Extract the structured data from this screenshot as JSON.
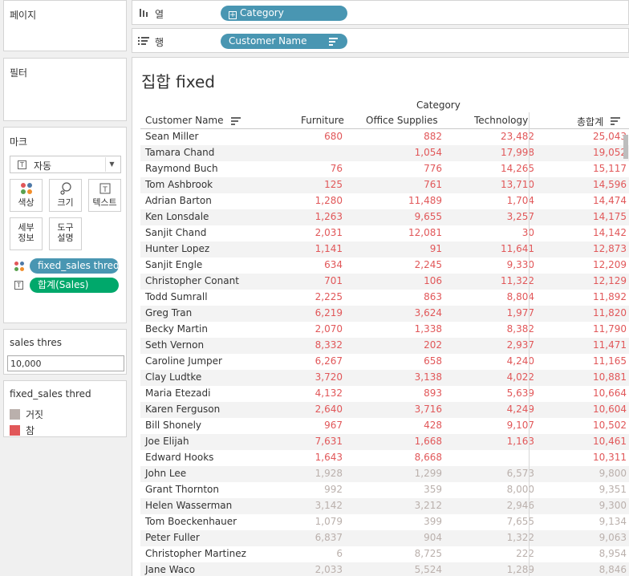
{
  "left": {
    "pages_title": "페이지",
    "filters_title": "필터",
    "marks": {
      "title": "마크",
      "type_label": "자동",
      "buttons": {
        "color": "색상",
        "size": "크기",
        "text": "텍스트",
        "detail_l1": "세부",
        "detail_l2": "정보",
        "tooltip_l1": "도구",
        "tooltip_l2": "설명"
      },
      "pills": [
        {
          "label": "fixed_sales thred",
          "kind": "color"
        },
        {
          "label": "합계(Sales)",
          "kind": "text"
        }
      ]
    },
    "parameter": {
      "title": "sales thres",
      "value": "10,000"
    },
    "legend": {
      "title": "fixed_sales thred",
      "items": [
        {
          "label": "거짓",
          "color": "#bab0ac"
        },
        {
          "label": "참",
          "color": "#e15759"
        }
      ]
    }
  },
  "shelves": {
    "columns": {
      "label": "열",
      "pill": "Category"
    },
    "rows": {
      "label": "행",
      "pill": "Customer Name"
    }
  },
  "view": {
    "title": "집합 fixed",
    "column_group": "Category",
    "headers": {
      "name": "Customer Name",
      "furniture": "Furniture",
      "office": "Office Supplies",
      "technology": "Technology",
      "total": "총합계"
    },
    "colors": {
      "true": "#e15759",
      "false": "#bab0ac"
    },
    "rows": [
      {
        "name": "Sean Miller",
        "f": "680",
        "o": "882",
        "t": "23,482",
        "total": "25,043",
        "flag": true
      },
      {
        "name": "Tamara Chand",
        "f": "",
        "o": "1,054",
        "t": "17,998",
        "total": "19,052",
        "flag": true
      },
      {
        "name": "Raymond Buch",
        "f": "76",
        "o": "776",
        "t": "14,265",
        "total": "15,117",
        "flag": true
      },
      {
        "name": "Tom Ashbrook",
        "f": "125",
        "o": "761",
        "t": "13,710",
        "total": "14,596",
        "flag": true
      },
      {
        "name": "Adrian Barton",
        "f": "1,280",
        "o": "11,489",
        "t": "1,704",
        "total": "14,474",
        "flag": true
      },
      {
        "name": "Ken Lonsdale",
        "f": "1,263",
        "o": "9,655",
        "t": "3,257",
        "total": "14,175",
        "flag": true
      },
      {
        "name": "Sanjit Chand",
        "f": "2,031",
        "o": "12,081",
        "t": "30",
        "total": "14,142",
        "flag": true
      },
      {
        "name": "Hunter Lopez",
        "f": "1,141",
        "o": "91",
        "t": "11,641",
        "total": "12,873",
        "flag": true
      },
      {
        "name": "Sanjit Engle",
        "f": "634",
        "o": "2,245",
        "t": "9,330",
        "total": "12,209",
        "flag": true
      },
      {
        "name": "Christopher Conant",
        "f": "701",
        "o": "106",
        "t": "11,322",
        "total": "12,129",
        "flag": true
      },
      {
        "name": "Todd Sumrall",
        "f": "2,225",
        "o": "863",
        "t": "8,804",
        "total": "11,892",
        "flag": true
      },
      {
        "name": "Greg Tran",
        "f": "6,219",
        "o": "3,624",
        "t": "1,977",
        "total": "11,820",
        "flag": true
      },
      {
        "name": "Becky Martin",
        "f": "2,070",
        "o": "1,338",
        "t": "8,382",
        "total": "11,790",
        "flag": true
      },
      {
        "name": "Seth Vernon",
        "f": "8,332",
        "o": "202",
        "t": "2,937",
        "total": "11,471",
        "flag": true
      },
      {
        "name": "Caroline Jumper",
        "f": "6,267",
        "o": "658",
        "t": "4,240",
        "total": "11,165",
        "flag": true
      },
      {
        "name": "Clay Ludtke",
        "f": "3,720",
        "o": "3,138",
        "t": "4,022",
        "total": "10,881",
        "flag": true
      },
      {
        "name": "Maria Etezadi",
        "f": "4,132",
        "o": "893",
        "t": "5,639",
        "total": "10,664",
        "flag": true
      },
      {
        "name": "Karen Ferguson",
        "f": "2,640",
        "o": "3,716",
        "t": "4,249",
        "total": "10,604",
        "flag": true
      },
      {
        "name": "Bill Shonely",
        "f": "967",
        "o": "428",
        "t": "9,107",
        "total": "10,502",
        "flag": true
      },
      {
        "name": "Joe Elijah",
        "f": "7,631",
        "o": "1,668",
        "t": "1,163",
        "total": "10,461",
        "flag": true
      },
      {
        "name": "Edward Hooks",
        "f": "1,643",
        "o": "8,668",
        "t": "",
        "total": "10,311",
        "flag": true
      },
      {
        "name": "John Lee",
        "f": "1,928",
        "o": "1,299",
        "t": "6,573",
        "total": "9,800",
        "flag": false
      },
      {
        "name": "Grant Thornton",
        "f": "992",
        "o": "359",
        "t": "8,000",
        "total": "9,351",
        "flag": false
      },
      {
        "name": "Helen Wasserman",
        "f": "3,142",
        "o": "3,212",
        "t": "2,946",
        "total": "9,300",
        "flag": false
      },
      {
        "name": "Tom Boeckenhauer",
        "f": "1,079",
        "o": "399",
        "t": "7,655",
        "total": "9,134",
        "flag": false
      },
      {
        "name": "Peter Fuller",
        "f": "6,837",
        "o": "904",
        "t": "1,322",
        "total": "9,063",
        "flag": false
      },
      {
        "name": "Christopher Martinez",
        "f": "6",
        "o": "8,725",
        "t": "222",
        "total": "8,954",
        "flag": false
      },
      {
        "name": "Jane Waco",
        "f": "2,033",
        "o": "5,524",
        "t": "1,289",
        "total": "8,846",
        "flag": false
      }
    ]
  }
}
